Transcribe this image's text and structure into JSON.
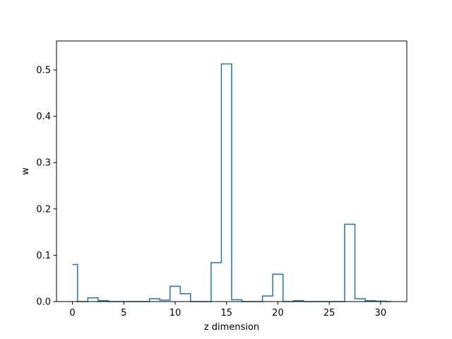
{
  "chart_data": {
    "type": "step",
    "title": "",
    "xlabel": "z dimension",
    "ylabel": "w",
    "xlim": [
      -1.55,
      32.55
    ],
    "ylim": [
      0,
      0.5625
    ],
    "xticks": [
      0,
      5,
      10,
      15,
      20,
      25,
      30
    ],
    "yticks": [
      0.0,
      0.1,
      0.2,
      0.3,
      0.4,
      0.5
    ],
    "yticklabels": [
      "0.0",
      "0.1",
      "0.2",
      "0.3",
      "0.4",
      "0.5"
    ],
    "grid": false,
    "color": "#1f77b4",
    "x": [
      0,
      1,
      2,
      3,
      4,
      5,
      6,
      7,
      8,
      9,
      10,
      11,
      12,
      13,
      14,
      15,
      16,
      17,
      18,
      19,
      20,
      21,
      22,
      23,
      24,
      25,
      26,
      27,
      28,
      29,
      30,
      31
    ],
    "values": [
      0.08,
      0.0,
      0.008,
      0.002,
      0.0,
      0.0,
      0.0,
      0.0,
      0.006,
      0.003,
      0.033,
      0.017,
      0.0,
      0.0,
      0.084,
      0.513,
      0.004,
      0.0,
      0.0,
      0.012,
      0.059,
      0.0,
      0.002,
      0.0,
      0.0,
      0.0,
      0.0,
      0.167,
      0.006,
      0.002,
      0.001,
      0.0
    ]
  }
}
